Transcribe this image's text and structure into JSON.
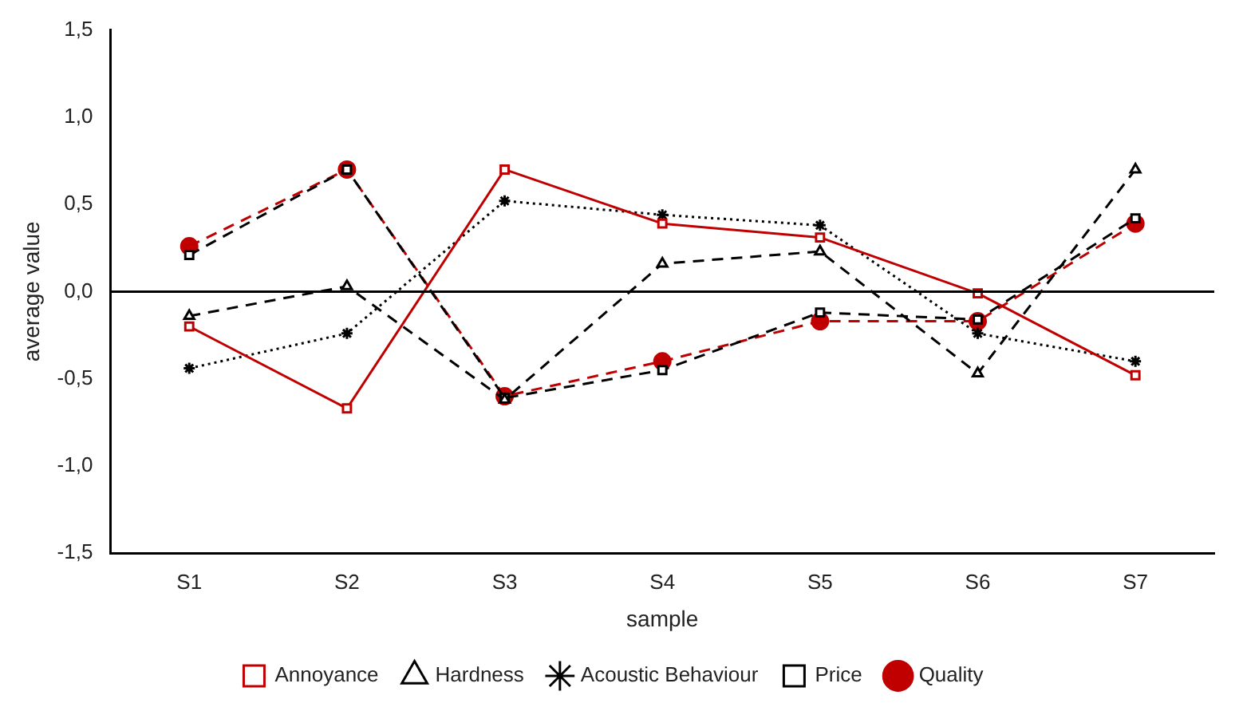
{
  "chart_data": {
    "type": "line",
    "xlabel": "sample",
    "ylabel": "average value",
    "categories": [
      "S1",
      "S2",
      "S3",
      "S4",
      "S5",
      "S6",
      "S7"
    ],
    "series": [
      {
        "name": "Annoyance",
        "color": "#c00000",
        "line_style": "solid",
        "marker": "square",
        "values": [
          -0.2,
          -0.67,
          0.7,
          0.39,
          0.31,
          -0.01,
          -0.48
        ]
      },
      {
        "name": "Hardness",
        "color": "#000000",
        "line_style": "dashed",
        "marker": "triangle",
        "values": [
          -0.14,
          0.03,
          -0.62,
          0.16,
          0.23,
          -0.47,
          0.7
        ]
      },
      {
        "name": "Acoustic Behaviour",
        "color": "#000000",
        "line_style": "dotted",
        "marker": "cross",
        "values": [
          -0.44,
          -0.24,
          0.52,
          0.44,
          0.38,
          -0.24,
          -0.4
        ]
      },
      {
        "name": "Price",
        "color": "#000000",
        "line_style": "dashed",
        "marker": "square",
        "values": [
          0.21,
          0.7,
          -0.61,
          -0.45,
          -0.12,
          -0.16,
          0.42
        ]
      },
      {
        "name": "Quality",
        "color": "#c00000",
        "line_style": "dashed",
        "marker": "circle",
        "values": [
          0.26,
          0.7,
          -0.6,
          -0.4,
          -0.17,
          -0.17,
          0.39
        ]
      }
    ],
    "ylim": [
      -1.5,
      1.5
    ],
    "yticks": [
      {
        "value": -1.5,
        "label": "-1,5"
      },
      {
        "value": -1,
        "label": "-1,0"
      },
      {
        "value": -0.5,
        "label": "-0,5"
      },
      {
        "value": 0,
        "label": "0,0"
      },
      {
        "value": 0.5,
        "label": "0,5"
      },
      {
        "value": 1,
        "label": "1,0"
      },
      {
        "value": 1.5,
        "label": "1,5"
      }
    ],
    "ref_lines": [
      {
        "axis": "y",
        "value": 0,
        "color": "#000000"
      }
    ],
    "grid": false,
    "legend": "bottom"
  }
}
